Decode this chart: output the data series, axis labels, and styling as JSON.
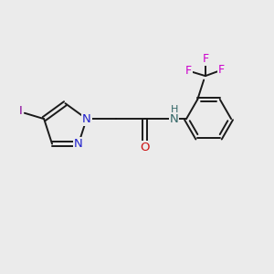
{
  "background_color": "#ebebeb",
  "bond_color": "#1a1a1a",
  "N_color": "#2020cc",
  "O_color": "#cc1111",
  "F_color": "#cc00cc",
  "I_color": "#880099",
  "NH_color": "#336666",
  "figsize": [
    3.0,
    3.0
  ],
  "dpi": 100,
  "xlim": [
    0,
    12
  ],
  "ylim": [
    0,
    12
  ]
}
